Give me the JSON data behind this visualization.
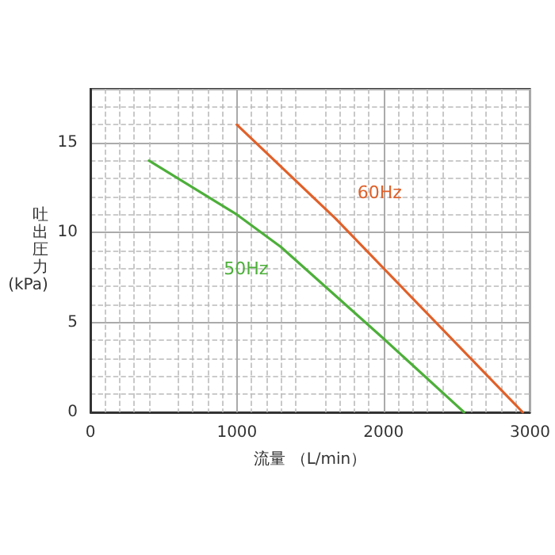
{
  "chart_data": {
    "type": "line",
    "xlabel": "流量 （L/min）",
    "ylabel": "吐出圧力(kPa)",
    "xlim": [
      0,
      3000
    ],
    "xticks": [
      0,
      1000,
      2000,
      3000
    ],
    "ylim": [
      0,
      18
    ],
    "yticks": [
      0,
      5,
      10,
      15
    ],
    "grid": true,
    "legend": false,
    "marker": "none",
    "line_style": "solid",
    "series": [
      {
        "name": "50Hz",
        "color": "#4daf3a",
        "x": [
          400,
          1000,
          1300,
          2000,
          2550
        ],
        "values": [
          14,
          11,
          9.2,
          4.1,
          0
        ]
      },
      {
        "name": "60Hz",
        "color": "#e0612a",
        "x": [
          1000,
          1670,
          2950
        ],
        "values": [
          16,
          10.8,
          0
        ]
      }
    ]
  }
}
